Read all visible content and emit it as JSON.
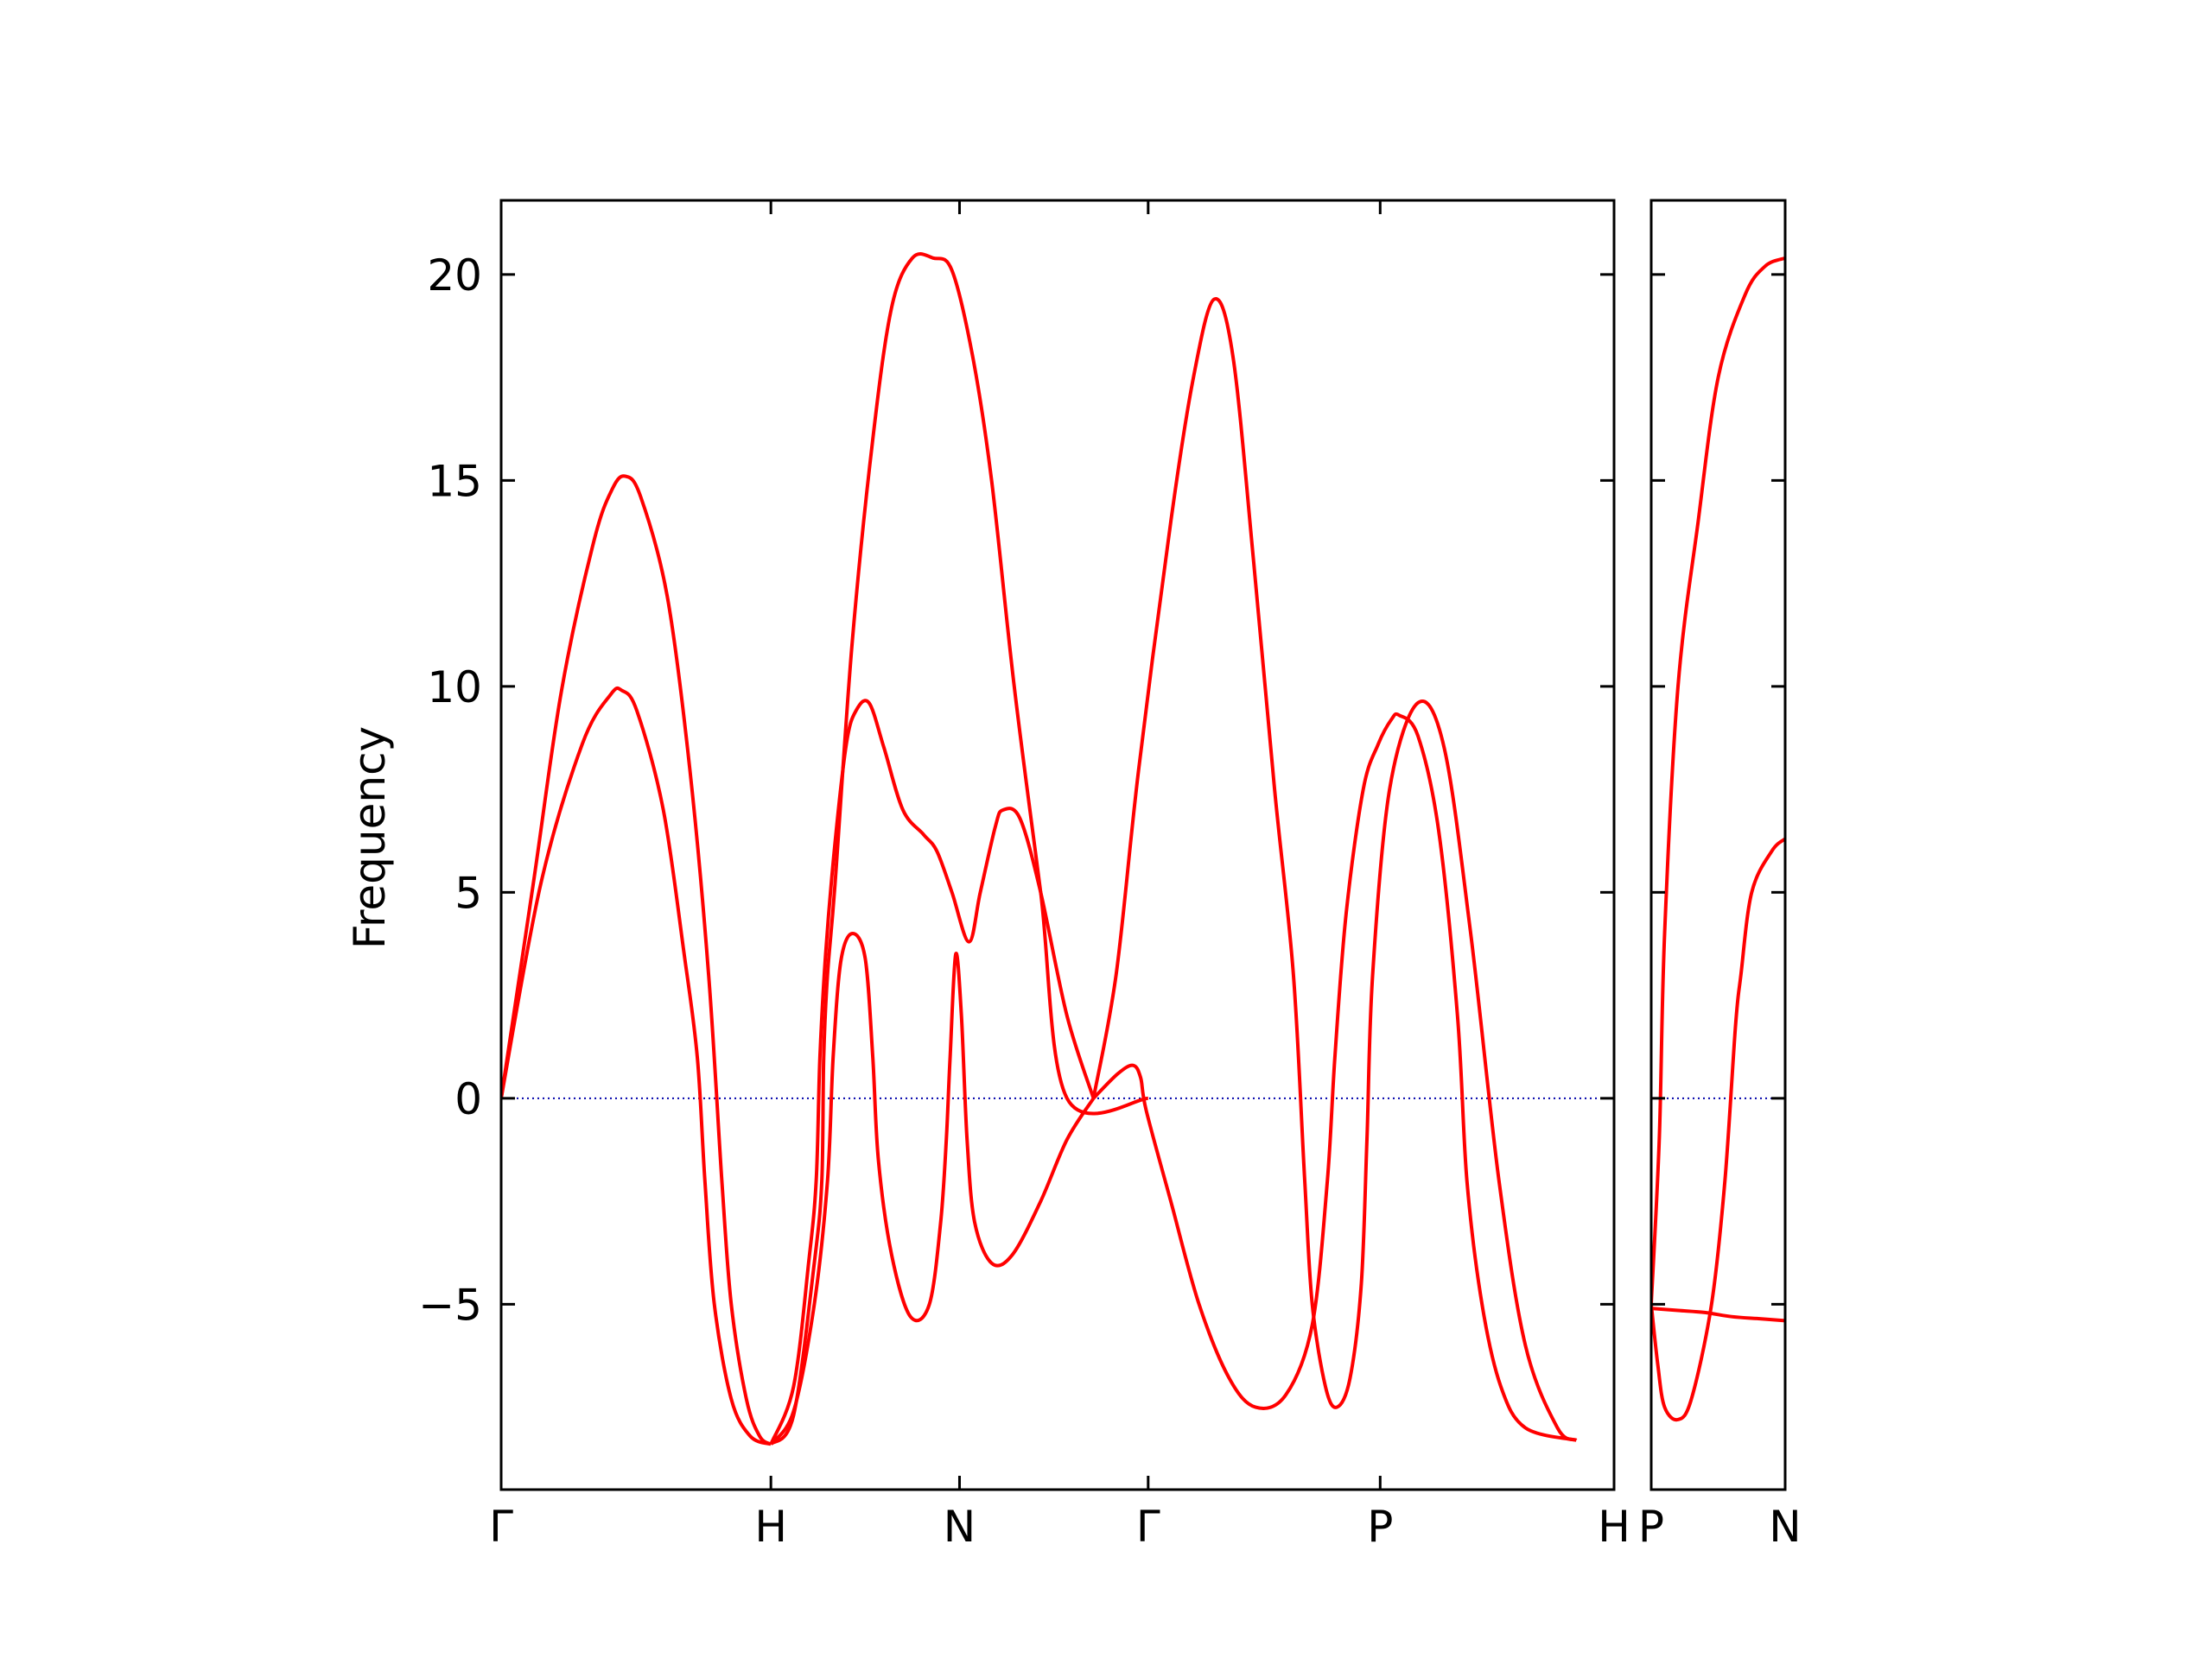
{
  "chart_data": [
    {
      "type": "line",
      "ylabel": "Frequency",
      "ylim": [
        -9.5,
        21.8
      ],
      "yticks": [
        -5,
        0,
        5,
        10,
        15,
        20
      ],
      "ytick_labels": [
        "−5",
        "0",
        "5",
        "10",
        "15",
        "20"
      ],
      "xlim": [
        0,
        5.9
      ],
      "xticks": [
        0,
        1.43,
        2.43,
        3.43,
        4.66,
        5.9
      ],
      "xtick_labels": [
        "Γ",
        "H",
        "N",
        "Γ",
        "P",
        "H"
      ],
      "reference_line": {
        "y": 0,
        "style": "dotted",
        "color": "#0000aa"
      },
      "line_color": "#ff0000",
      "grid": false,
      "series": [
        {
          "points": [
            [
              0,
              0
            ],
            [
              0.17,
              5.2
            ],
            [
              0.32,
              9.9
            ],
            [
              0.49,
              13.5
            ],
            [
              0.59,
              14.8
            ],
            [
              0.66,
              15.1
            ],
            [
              0.74,
              14.6
            ],
            [
              0.88,
              12.2
            ],
            [
              1.0,
              8.0
            ],
            [
              1.1,
              3.0
            ],
            [
              1.17,
              -2.0
            ],
            [
              1.22,
              -5.0
            ],
            [
              1.3,
              -7.3
            ],
            [
              1.37,
              -8.2
            ],
            [
              1.43,
              -8.4
            ]
          ]
        },
        {
          "points": [
            [
              0,
              0
            ],
            [
              0.21,
              5.2
            ],
            [
              0.43,
              8.6
            ],
            [
              0.58,
              9.8
            ],
            [
              0.64,
              9.9
            ],
            [
              0.72,
              9.4
            ],
            [
              0.86,
              7.0
            ],
            [
              0.97,
              3.5
            ],
            [
              1.04,
              1.0
            ],
            [
              1.08,
              -2.0
            ],
            [
              1.13,
              -5.0
            ],
            [
              1.22,
              -7.3
            ],
            [
              1.32,
              -8.2
            ],
            [
              1.43,
              -8.4
            ]
          ]
        },
        {
          "points": [
            [
              1.43,
              -8.4
            ],
            [
              1.55,
              -7.7
            ],
            [
              1.66,
              -4.0
            ],
            [
              1.7,
              -2.0
            ],
            [
              1.71,
              1.0
            ],
            [
              1.73,
              3.0
            ],
            [
              1.77,
              5.2
            ],
            [
              1.86,
              11.0
            ],
            [
              1.97,
              16.0
            ],
            [
              2.07,
              19.2
            ],
            [
              2.18,
              20.4
            ],
            [
              2.29,
              20.4
            ],
            [
              2.39,
              20.1
            ],
            [
              2.5,
              18.0
            ],
            [
              2.6,
              15.0
            ],
            [
              2.72,
              10.0
            ],
            [
              2.86,
              5.0
            ],
            [
              3.0,
              0.0
            ],
            [
              3.43,
              0.0
            ]
          ]
        },
        {
          "points": [
            [
              1.43,
              -8.4
            ],
            [
              1.55,
              -7.0
            ],
            [
              1.63,
              -4.0
            ],
            [
              1.67,
              -2.0
            ],
            [
              1.69,
              1.0
            ],
            [
              1.72,
              3.5
            ],
            [
              1.77,
              6.2
            ],
            [
              1.83,
              8.6
            ],
            [
              1.88,
              9.4
            ],
            [
              1.95,
              9.6
            ],
            [
              2.03,
              8.5
            ],
            [
              2.13,
              7.0
            ],
            [
              2.24,
              6.4
            ],
            [
              2.31,
              6.0
            ],
            [
              2.39,
              5.0
            ],
            [
              2.48,
              3.8
            ],
            [
              2.54,
              5.0
            ],
            [
              2.62,
              6.6
            ],
            [
              2.66,
              7.0
            ],
            [
              2.75,
              6.8
            ],
            [
              2.86,
              5.0
            ],
            [
              3.0,
              2.0
            ],
            [
              3.14,
              0.0
            ]
          ]
        },
        {
          "points": [
            [
              1.43,
              -8.4
            ],
            [
              1.55,
              -7.6
            ],
            [
              1.66,
              -5.0
            ],
            [
              1.73,
              -2.0
            ],
            [
              1.76,
              1.0
            ],
            [
              1.8,
              3.3
            ],
            [
              1.86,
              4.0
            ],
            [
              1.93,
              3.4
            ],
            [
              1.97,
              1.0
            ],
            [
              2.0,
              -1.5
            ],
            [
              2.07,
              -3.8
            ],
            [
              2.17,
              -5.3
            ],
            [
              2.27,
              -5.0
            ],
            [
              2.33,
              -3.0
            ],
            [
              2.36,
              -1.0
            ],
            [
              2.38,
              1.0
            ],
            [
              2.41,
              3.5
            ],
            [
              2.44,
              2.0
            ],
            [
              2.47,
              -1.0
            ],
            [
              2.51,
              -3.0
            ],
            [
              2.6,
              -4.0
            ],
            [
              2.71,
              -3.8
            ],
            [
              2.86,
              -2.5
            ],
            [
              3.0,
              -1.0
            ],
            [
              3.14,
              0.0
            ]
          ]
        },
        {
          "points": [
            [
              3.14,
              0.0
            ],
            [
              3.26,
              3.0
            ],
            [
              3.38,
              8.0
            ],
            [
              3.55,
              14.0
            ],
            [
              3.67,
              17.5
            ],
            [
              3.78,
              19.4
            ],
            [
              3.88,
              18.0
            ],
            [
              3.99,
              13.0
            ],
            [
              4.1,
              7.5
            ],
            [
              4.2,
              3.0
            ],
            [
              4.26,
              -2.0
            ],
            [
              4.3,
              -5.0
            ],
            [
              4.37,
              -7.0
            ],
            [
              4.43,
              -7.5
            ],
            [
              4.5,
              -6.8
            ],
            [
              4.56,
              -4.5
            ],
            [
              4.59,
              -1.0
            ],
            [
              4.62,
              3.0
            ],
            [
              4.71,
              7.5
            ],
            [
              4.86,
              9.6
            ],
            [
              5.0,
              8.5
            ],
            [
              5.14,
              4.0
            ],
            [
              5.29,
              -2.0
            ],
            [
              5.43,
              -6.0
            ],
            [
              5.6,
              -8.0
            ],
            [
              5.7,
              -8.3
            ]
          ]
        },
        {
          "points": [
            [
              3.14,
              0.0
            ],
            [
              3.27,
              0.6
            ],
            [
              3.35,
              0.8
            ],
            [
              3.39,
              0.5
            ],
            [
              3.42,
              -0.3
            ],
            [
              3.55,
              -2.5
            ],
            [
              3.7,
              -5.0
            ],
            [
              3.86,
              -6.8
            ],
            [
              4.0,
              -7.5
            ],
            [
              4.16,
              -7.2
            ],
            [
              4.3,
              -5.5
            ],
            [
              4.38,
              -2.0
            ],
            [
              4.42,
              1.0
            ],
            [
              4.48,
              4.5
            ],
            [
              4.57,
              7.5
            ],
            [
              4.65,
              8.6
            ],
            [
              4.72,
              9.2
            ],
            [
              4.76,
              9.3
            ],
            [
              4.86,
              8.8
            ],
            [
              4.97,
              6.5
            ],
            [
              5.07,
              2.0
            ],
            [
              5.12,
              -2.0
            ],
            [
              5.2,
              -5.0
            ],
            [
              5.3,
              -7.0
            ],
            [
              5.43,
              -8.0
            ],
            [
              5.7,
              -8.3
            ]
          ]
        }
      ]
    },
    {
      "type": "line",
      "ylim": [
        -9.5,
        21.8
      ],
      "xlim": [
        0,
        1
      ],
      "xticks": [
        0,
        1
      ],
      "xtick_labels": [
        "P",
        "N"
      ],
      "reference_line": {
        "y": 0,
        "style": "dotted",
        "color": "#0000aa"
      },
      "line_color": "#ff0000",
      "grid": false,
      "series": [
        {
          "points": [
            [
              0,
              -5.0
            ],
            [
              0.06,
              -1.0
            ],
            [
              0.1,
              4.0
            ],
            [
              0.2,
              10.0
            ],
            [
              0.35,
              14.0
            ],
            [
              0.5,
              17.5
            ],
            [
              0.7,
              19.5
            ],
            [
              0.85,
              20.2
            ],
            [
              1.0,
              20.4
            ]
          ]
        },
        {
          "points": [
            [
              0,
              -5.0
            ],
            [
              0.05,
              -6.5
            ],
            [
              0.1,
              -7.5
            ],
            [
              0.2,
              -7.8
            ],
            [
              0.3,
              -7.3
            ],
            [
              0.45,
              -5.0
            ],
            [
              0.55,
              -2.0
            ],
            [
              0.63,
              1.8
            ],
            [
              0.67,
              3.0
            ],
            [
              0.75,
              5.0
            ],
            [
              0.9,
              6.0
            ],
            [
              1.0,
              6.3
            ]
          ]
        },
        {
          "points": [
            [
              0,
              -5.1
            ],
            [
              0.2,
              -5.15
            ],
            [
              0.4,
              -5.2
            ],
            [
              0.6,
              -5.3
            ],
            [
              0.8,
              -5.35
            ],
            [
              1.0,
              -5.4
            ]
          ]
        }
      ]
    }
  ]
}
